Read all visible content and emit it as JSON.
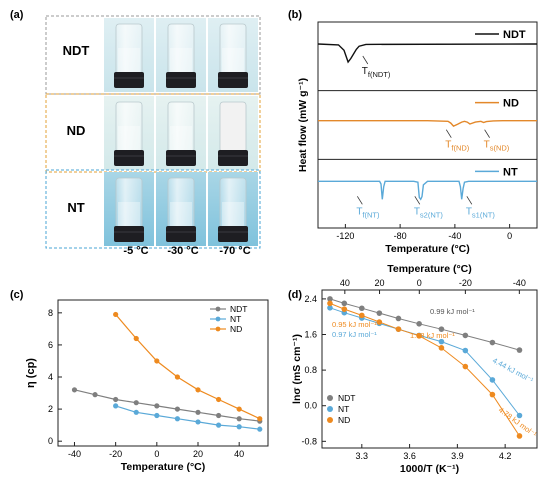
{
  "figure": {
    "panel_labels": [
      "(a)",
      "(b)",
      "(c)",
      "(d)"
    ]
  },
  "panel_a": {
    "row_labels": [
      "NDT",
      "ND",
      "NT"
    ],
    "temperatures": [
      "-5 °C",
      "-30 °C",
      "-70 °C"
    ],
    "row_colors": [
      "#9a9a9a",
      "#e3a236",
      "#4aa6d6"
    ]
  },
  "chart_data": [
    {
      "panel": "b",
      "type": "line",
      "xlabel": "Temperature (°C)",
      "ylabel": "Heat flow (mW g⁻¹)",
      "xlim": [
        -140,
        20
      ],
      "xticks": [
        -120,
        -80,
        -40,
        0
      ],
      "series": [
        {
          "name": "NDT",
          "color": "#111111",
          "x": [
            -140,
            -125,
            -121,
            -118,
            -116,
            -114,
            -112,
            -110,
            -105,
            20
          ],
          "y": [
            0,
            0.05,
            0.35,
            1.0,
            0.8,
            0.55,
            0.3,
            0.12,
            0.02,
            0
          ],
          "annotations": [
            {
              "text": "T",
              "sub": "f(NDT)",
              "x": -108
            }
          ]
        },
        {
          "name": "ND",
          "color": "#e3882a",
          "x": [
            -140,
            -60,
            -45,
            -43,
            -41,
            -38,
            -35,
            -33,
            -31,
            -29,
            -25,
            -21,
            -19,
            -17,
            -12,
            -5,
            20
          ],
          "y": [
            0,
            0,
            0.05,
            0.2,
            0.45,
            0.3,
            0.12,
            0.05,
            0.12,
            0.28,
            0.12,
            0.05,
            0.15,
            0.08,
            0.02,
            0,
            0
          ],
          "annotations": [
            {
              "text": "T",
              "sub": "f(ND)",
              "x": -47
            },
            {
              "text": "T",
              "sub": "s(ND)",
              "x": -19
            }
          ]
        },
        {
          "name": "NT",
          "color": "#5aa9d8",
          "x": [
            -140,
            -95,
            -94,
            -93,
            -92,
            -91,
            -70,
            -67,
            -66,
            -65,
            -64,
            -63,
            -60,
            -37,
            -36,
            -35,
            -34,
            -33,
            -30,
            20
          ],
          "y": [
            0,
            0,
            0.15,
            1.0,
            0.3,
            0,
            0,
            0.05,
            0.9,
            1.0,
            0.85,
            0.2,
            0,
            0,
            0.3,
            1.0,
            0.4,
            0.05,
            0,
            0
          ],
          "annotations": [
            {
              "text": "T",
              "sub": "f(NT)",
              "x": -112
            },
            {
              "text": "T",
              "sub": "s2(NT)",
              "x": -70
            },
            {
              "text": "T",
              "sub": "s1(NT)",
              "x": -32
            }
          ]
        }
      ]
    },
    {
      "panel": "c",
      "type": "line",
      "xlabel": "Temperature (°C)",
      "ylabel": "η (cp)",
      "xlim": [
        -48,
        54
      ],
      "ylim": [
        -0.3,
        8.8
      ],
      "xticks": [
        -40,
        -20,
        0,
        20,
        40
      ],
      "yticks": [
        0,
        2,
        4,
        6,
        8
      ],
      "legend_position": "top-right",
      "series": [
        {
          "name": "NDT",
          "color": "#7f7f7f",
          "x": [
            -40,
            -30,
            -20,
            -10,
            0,
            10,
            20,
            30,
            40,
            50
          ],
          "y": [
            3.2,
            2.9,
            2.6,
            2.4,
            2.2,
            2.0,
            1.8,
            1.6,
            1.4,
            1.25
          ]
        },
        {
          "name": "NT",
          "color": "#5aa9d8",
          "x": [
            -20,
            -10,
            0,
            10,
            20,
            30,
            40,
            50
          ],
          "y": [
            2.2,
            1.8,
            1.6,
            1.4,
            1.2,
            1.0,
            0.9,
            0.75
          ]
        },
        {
          "name": "ND",
          "color": "#ee8a1f",
          "x": [
            -20,
            -10,
            0,
            10,
            20,
            30,
            40,
            50
          ],
          "y": [
            7.9,
            6.4,
            5.0,
            4.0,
            3.2,
            2.6,
            2.0,
            1.4
          ]
        }
      ]
    },
    {
      "panel": "d",
      "type": "scatter",
      "xlabel": "1000/T (K⁻¹)",
      "ylabel": "lnσ (mS cm⁻¹)",
      "x2label": "Temperature (°C)",
      "xlim": [
        3.05,
        4.4
      ],
      "ylim": [
        -0.95,
        2.6
      ],
      "xticks": [
        3.3,
        3.6,
        3.9,
        4.2
      ],
      "yticks": [
        -0.8,
        0.0,
        0.8,
        1.6,
        2.4
      ],
      "x2ticks": [
        40,
        20,
        0,
        -20,
        -40
      ],
      "legend_position": "bottom-left",
      "series": [
        {
          "name": "NDT",
          "color": "#7f7f7f",
          "x": [
            3.1,
            3.19,
            3.3,
            3.41,
            3.53,
            3.66,
            3.8,
            3.95,
            4.12,
            4.29
          ],
          "y": [
            2.4,
            2.3,
            2.19,
            2.08,
            1.96,
            1.84,
            1.72,
            1.58,
            1.42,
            1.25
          ]
        },
        {
          "name": "NT",
          "color": "#5aa9d8",
          "x": [
            3.1,
            3.19,
            3.3,
            3.41,
            3.53,
            3.66,
            3.8,
            3.95,
            4.12,
            4.29
          ],
          "y": [
            2.2,
            2.09,
            1.97,
            1.85,
            1.72,
            1.58,
            1.44,
            1.24,
            0.58,
            -0.22
          ]
        },
        {
          "name": "ND",
          "color": "#ee8a1f",
          "x": [
            3.1,
            3.19,
            3.3,
            3.41,
            3.53,
            3.66,
            3.8,
            3.95,
            4.12,
            4.29
          ],
          "y": [
            2.3,
            2.17,
            2.03,
            1.88,
            1.72,
            1.57,
            1.3,
            0.88,
            0.25,
            -0.68
          ]
        }
      ],
      "annotations": [
        {
          "text": "0.99 kJ mol⁻¹",
          "color": "#555555"
        },
        {
          "text": "0.95 kJ mol⁻¹",
          "color": "#ee8a1f"
        },
        {
          "text": "0.97 kJ mol⁻¹",
          "color": "#5aa9d8"
        },
        {
          "text": "1.93 kJ mol⁻¹",
          "color": "#ee8a1f"
        },
        {
          "text": "4.44 kJ mol⁻¹",
          "color": "#5aa9d8"
        },
        {
          "text": "4.78 kJ mol⁻¹",
          "color": "#ee8a1f"
        }
      ]
    }
  ]
}
